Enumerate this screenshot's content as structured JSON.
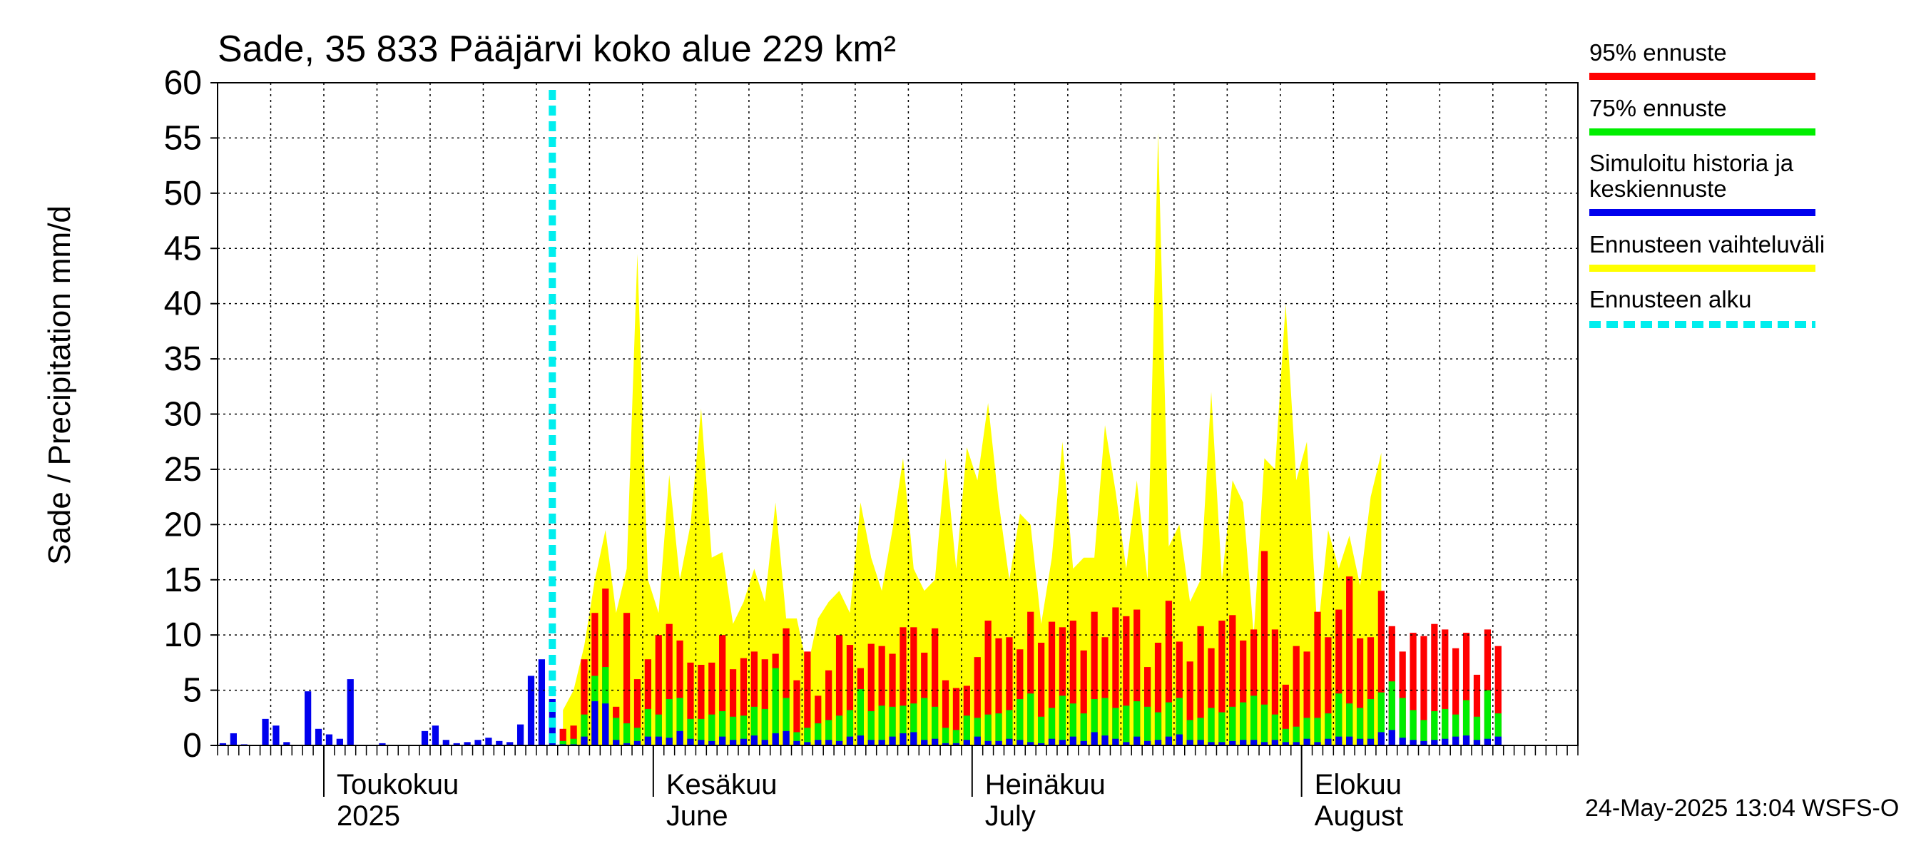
{
  "chart_data": {
    "type": "bar",
    "title": "Sade, 35 833 Pääjärvi koko alue 229 km²",
    "ylabel": "Sade / Precipitation   mm/d",
    "ylim": [
      0,
      60
    ],
    "yticks": [
      0,
      5,
      10,
      15,
      20,
      25,
      30,
      35,
      40,
      45,
      50,
      55,
      60
    ],
    "x_range_days": [
      0,
      128
    ],
    "months": [
      {
        "day": 10,
        "label1": "Toukokuu",
        "label2": "2025"
      },
      {
        "day": 41,
        "label1": "Kesäkuu",
        "label2": "June"
      },
      {
        "day": 71,
        "label1": "Heinäkuu",
        "label2": "July"
      },
      {
        "day": 102,
        "label1": "Elokuu",
        "label2": "August"
      }
    ],
    "forecast_start_day": 31.5,
    "history_start_day": 0,
    "history": [
      0.2,
      1.1,
      0.1,
      0,
      2.4,
      1.8,
      0.3,
      0,
      4.9,
      1.5,
      1.0,
      0.6,
      6.0,
      0,
      0,
      0.2,
      0,
      0,
      0,
      1.3,
      1.8,
      0.5,
      0.2,
      0.3,
      0.5,
      0.7,
      0.4,
      0.3,
      1.9,
      6.3,
      7.8,
      4.2
    ],
    "forecast_start_index": 32,
    "envelope_max": [
      3.2,
      5.0,
      9.0,
      15.0,
      19.5,
      12.0,
      16.0,
      44.5,
      15.0,
      12.0,
      24.5,
      15.0,
      20.0,
      30.5,
      17.0,
      17.5,
      11.0,
      13.0,
      16.0,
      13.0,
      22.0,
      11.5,
      11.5,
      7.0,
      11.5,
      13.0,
      14.0,
      12.0,
      22.0,
      17.0,
      14.0,
      19.5,
      26.0,
      16.0,
      14.0,
      15.0,
      26.0,
      16.0,
      27.0,
      24.0,
      31.0,
      22.0,
      15.0,
      21.0,
      20.0,
      11.0,
      17.0,
      27.5,
      16.0,
      17.0,
      17.0,
      29.0,
      23.0,
      16.0,
      24.0,
      15.0,
      55.5,
      18.0,
      20.0,
      13.0,
      15.0,
      32.0,
      15.0,
      24.0,
      22.0,
      10.0,
      26.0,
      25.0,
      40.0,
      24.0,
      27.5,
      10.0,
      19.5,
      16.0,
      19.0,
      14.5,
      22.5,
      26.5
    ],
    "red": [
      1.5,
      1.8,
      7.8,
      12.0,
      14.2,
      3.5,
      12.0,
      6.0,
      7.8,
      10.0,
      11.0,
      9.5,
      7.5,
      7.3,
      7.5,
      10.0,
      6.9,
      7.9,
      8.5,
      7.8,
      8.3,
      10.6,
      5.9,
      8.5,
      4.5,
      6.8,
      10.0,
      9.1,
      7.0,
      9.2,
      9.0,
      8.3,
      10.7,
      10.7,
      8.4,
      10.6,
      5.9,
      5.2,
      5.4,
      8.0,
      11.3,
      9.7,
      9.8,
      8.7,
      12.1,
      9.3,
      11.2,
      10.7,
      11.3,
      8.6,
      12.1,
      9.8,
      12.5,
      11.7,
      12.3,
      7.1,
      9.3,
      13.1,
      9.4,
      7.6,
      10.8,
      8.8,
      11.3,
      11.8,
      9.5,
      10.5,
      17.6,
      10.5,
      5.5,
      9.0,
      8.5,
      12.1,
      9.8,
      12.3,
      15.3,
      9.7,
      9.8,
      14.0,
      10.8,
      8.5,
      10.2,
      9.9,
      11.0,
      10.5,
      8.8,
      10.2,
      6.4,
      10.5,
      9.0
    ],
    "green": [
      0.4,
      0.6,
      2.8,
      6.3,
      7.1,
      2.5,
      2.0,
      1.6,
      3.3,
      2.8,
      4.2,
      4.3,
      2.4,
      2.4,
      2.8,
      3.1,
      2.6,
      2.7,
      3.5,
      3.3,
      7.0,
      4.3,
      1.2,
      1.6,
      2.0,
      2.3,
      2.7,
      3.2,
      5.1,
      3.1,
      3.6,
      3.5,
      3.6,
      3.8,
      4.3,
      3.5,
      1.6,
      1.4,
      2.7,
      2.5,
      2.8,
      2.9,
      3.2,
      4.2,
      4.7,
      2.6,
      3.4,
      4.5,
      3.8,
      2.9,
      4.2,
      4.3,
      3.4,
      3.6,
      4.0,
      3.5,
      3.0,
      3.9,
      4.3,
      2.3,
      2.5,
      3.4,
      3.0,
      3.5,
      3.9,
      4.5,
      3.7,
      2.8,
      1.5,
      1.7,
      2.5,
      2.5,
      2.9,
      4.7,
      3.8,
      3.4,
      4.2,
      4.8,
      5.8,
      4.3,
      3.2,
      2.3,
      3.1,
      3.3,
      2.8,
      4.1,
      2.6,
      5.0,
      2.9
    ],
    "blue": [
      0.1,
      0.1,
      0.8,
      4.0,
      3.8,
      0.5,
      0.2,
      0.4,
      0.8,
      0.8,
      0.7,
      1.3,
      0.6,
      0.5,
      0.4,
      0.8,
      0.5,
      0.6,
      0.9,
      0.5,
      1.1,
      1.3,
      0.4,
      0.3,
      0.5,
      0.5,
      0.4,
      0.8,
      0.9,
      0.5,
      0.5,
      0.8,
      1.1,
      1.2,
      0.5,
      0.6,
      0.2,
      0.2,
      0.5,
      0.8,
      0.4,
      0.4,
      0.6,
      0.5,
      0.3,
      0.2,
      0.6,
      0.5,
      0.8,
      0.4,
      1.2,
      0.9,
      0.6,
      0.3,
      0.8,
      0.4,
      0.5,
      0.8,
      1.0,
      0.5,
      0.5,
      0.3,
      0.3,
      0.4,
      0.5,
      0.5,
      0.3,
      0.5,
      0.3,
      0.3,
      0.6,
      0.3,
      0.6,
      0.8,
      0.8,
      0.6,
      0.6,
      1.2,
      1.4,
      0.7,
      0.5,
      0.4,
      0.5,
      0.6,
      0.8,
      0.9,
      0.5,
      0.6,
      0.8
    ],
    "legend": [
      {
        "label": "95% ennuste",
        "color": "#ff0000",
        "style": "solid"
      },
      {
        "label": "75% ennuste",
        "color": "#00ee00",
        "style": "solid"
      },
      {
        "label": "Simuloitu historia ja",
        "label2": "keskiennuste",
        "color": "#0000ee",
        "style": "solid"
      },
      {
        "label": "Ennusteen vaihteluväli",
        "color": "#ffff00",
        "style": "solid"
      },
      {
        "label": "Ennusteen alku",
        "color": "#00eeee",
        "style": "dashed"
      }
    ],
    "legend_position": "right"
  },
  "footer": {
    "timestamp": "24-May-2025 13:04 WSFS-O"
  },
  "colors": {
    "red": "#ff0000",
    "green": "#00ee00",
    "blue": "#0000ee",
    "yellow": "#ffff00",
    "cyan": "#00eeee",
    "grid": "#000000"
  }
}
